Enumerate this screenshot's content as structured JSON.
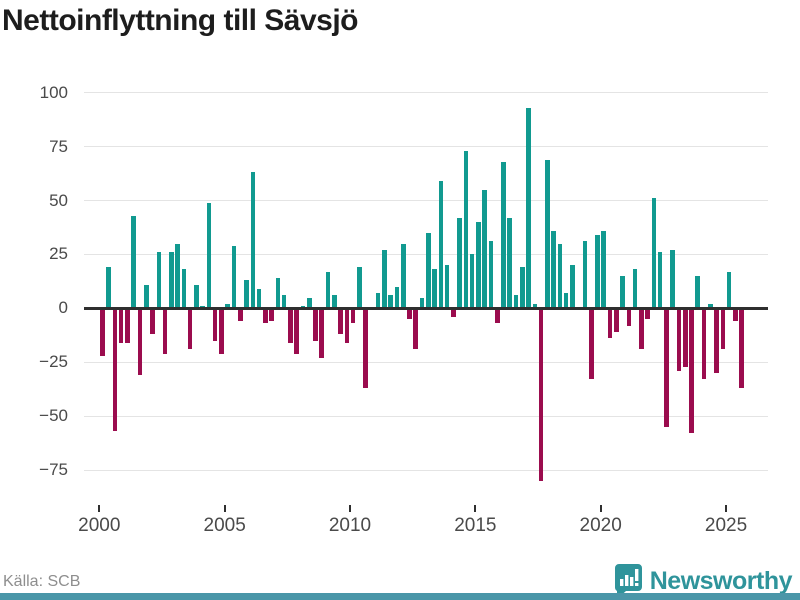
{
  "title": "Nettoinflyttning till Sävsjö",
  "footer": {
    "source": "Källa: SCB",
    "brand": "Newsworthy"
  },
  "colors": {
    "positive": "#119a90",
    "negative": "#9b0c4e",
    "grid": "#e4e4e4",
    "axis_line": "#2f2f2f",
    "title_text": "#1d1d1d",
    "tick_text": "#4a4a4a",
    "source_text": "#8e8e8e",
    "brand_teal": "#2f949b",
    "bottom_strip": "#4a96a8"
  },
  "chart_data": {
    "type": "bar",
    "title": "Nettoinflyttning till Sävsjö",
    "x_unit": "quarter",
    "start_year": 2000,
    "start_quarter": 1,
    "end_year": 2025,
    "end_quarter": 3,
    "x_tick_years": [
      2000,
      2005,
      2010,
      2015,
      2020,
      2025
    ],
    "y_ticks": [
      100,
      75,
      50,
      25,
      0,
      -25,
      -50,
      -75
    ],
    "ylim": [
      -88,
      104
    ],
    "grid": "horizontal",
    "legend": "none",
    "series": [
      {
        "name": "Nettoinflyttning",
        "values": [
          -22,
          19,
          -57,
          -16,
          -16,
          43,
          -31,
          11,
          -12,
          26,
          -21,
          26,
          30,
          18,
          -19,
          11,
          1,
          49,
          -15,
          -21,
          2,
          29,
          -6,
          13,
          63,
          9,
          -7,
          -6,
          14,
          6,
          -16,
          -21,
          1,
          5,
          -15,
          -23,
          17,
          6,
          -12,
          -16,
          -7,
          19,
          -37,
          0,
          7,
          27,
          6,
          10,
          30,
          -5,
          -19,
          5,
          35,
          18,
          59,
          20,
          -4,
          42,
          73,
          25,
          40,
          55,
          31,
          -7,
          68,
          42,
          6,
          19,
          93,
          2,
          -80,
          69,
          36,
          30,
          7,
          20,
          0,
          31,
          -33,
          34,
          36,
          -14,
          -11,
          15,
          -8,
          18,
          -19,
          -5,
          51,
          26,
          -55,
          27,
          -29,
          -27,
          -58,
          15,
          -33,
          2,
          -30,
          -19,
          17,
          -6,
          -37
        ]
      }
    ]
  }
}
